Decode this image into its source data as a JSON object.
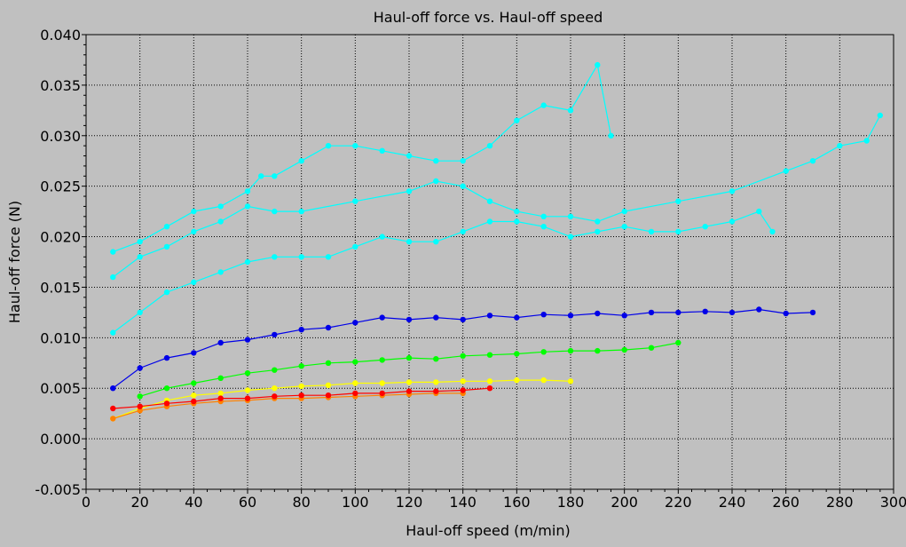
{
  "chart_data": {
    "type": "scatter",
    "title": "Haul-off force vs. Haul-off speed",
    "xlabel": "Haul-off speed (m/min)",
    "ylabel": "Haul-off force (N)",
    "xlim": [
      0,
      300
    ],
    "ylim": [
      -0.005,
      0.04
    ],
    "xticks": [
      0,
      20,
      40,
      60,
      80,
      100,
      120,
      140,
      160,
      180,
      200,
      220,
      240,
      260,
      280,
      300
    ],
    "yticks": [
      -0.005,
      0.0,
      0.005,
      0.01,
      0.015,
      0.02,
      0.025,
      0.03,
      0.035,
      0.04
    ],
    "xtick_labels": [
      "0",
      "20",
      "40",
      "60",
      "80",
      "100",
      "120",
      "140",
      "160",
      "180",
      "200",
      "220",
      "240",
      "260",
      "280",
      "300"
    ],
    "ytick_labels": [
      "-0.005",
      "0.000",
      "0.005",
      "0.010",
      "0.015",
      "0.020",
      "0.025",
      "0.030",
      "0.035",
      "0.040"
    ],
    "grid": true,
    "series": [
      {
        "color": "#00ffff",
        "points": [
          [
            10,
            0.0185
          ],
          [
            20,
            0.0195
          ],
          [
            30,
            0.021
          ],
          [
            40,
            0.0225
          ],
          [
            50,
            0.023
          ],
          [
            60,
            0.0245
          ],
          [
            65,
            0.026
          ],
          [
            70,
            0.026
          ],
          [
            80,
            0.0275
          ],
          [
            90,
            0.029
          ],
          [
            100,
            0.029
          ],
          [
            110,
            0.0285
          ],
          [
            120,
            0.028
          ],
          [
            130,
            0.0275
          ],
          [
            140,
            0.0275
          ],
          [
            150,
            0.029
          ],
          [
            160,
            0.0315
          ],
          [
            170,
            0.033
          ],
          [
            180,
            0.0325
          ],
          [
            190,
            0.037
          ],
          [
            195,
            0.03
          ]
        ]
      },
      {
        "color": "#00ffff",
        "points": [
          [
            10,
            0.016
          ],
          [
            20,
            0.018
          ],
          [
            30,
            0.019
          ],
          [
            40,
            0.0205
          ],
          [
            50,
            0.0215
          ],
          [
            60,
            0.023
          ],
          [
            70,
            0.0225
          ],
          [
            80,
            0.0225
          ],
          [
            100,
            0.0235
          ],
          [
            120,
            0.0245
          ],
          [
            130,
            0.0255
          ],
          [
            140,
            0.025
          ],
          [
            150,
            0.0235
          ],
          [
            160,
            0.0225
          ],
          [
            170,
            0.022
          ],
          [
            180,
            0.022
          ],
          [
            190,
            0.0215
          ],
          [
            200,
            0.0225
          ],
          [
            220,
            0.0235
          ],
          [
            240,
            0.0245
          ],
          [
            260,
            0.0265
          ],
          [
            270,
            0.0275
          ],
          [
            280,
            0.029
          ],
          [
            290,
            0.0295
          ],
          [
            295,
            0.032
          ]
        ]
      },
      {
        "color": "#00ffff",
        "points": [
          [
            10,
            0.0105
          ],
          [
            20,
            0.0125
          ],
          [
            30,
            0.0145
          ],
          [
            40,
            0.0155
          ],
          [
            50,
            0.0165
          ],
          [
            60,
            0.0175
          ],
          [
            70,
            0.018
          ],
          [
            80,
            0.018
          ],
          [
            90,
            0.018
          ],
          [
            100,
            0.019
          ],
          [
            110,
            0.02
          ],
          [
            120,
            0.0195
          ],
          [
            130,
            0.0195
          ],
          [
            140,
            0.0205
          ],
          [
            150,
            0.0215
          ],
          [
            160,
            0.0215
          ],
          [
            170,
            0.021
          ],
          [
            180,
            0.02
          ],
          [
            190,
            0.0205
          ],
          [
            200,
            0.021
          ],
          [
            210,
            0.0205
          ],
          [
            220,
            0.0205
          ],
          [
            230,
            0.021
          ],
          [
            240,
            0.0215
          ],
          [
            250,
            0.0225
          ],
          [
            255,
            0.0205
          ]
        ]
      },
      {
        "color": "#0000e8",
        "points": [
          [
            10,
            0.005
          ],
          [
            20,
            0.007
          ],
          [
            30,
            0.008
          ],
          [
            40,
            0.0085
          ],
          [
            50,
            0.0095
          ],
          [
            60,
            0.0098
          ],
          [
            70,
            0.0103
          ],
          [
            80,
            0.0108
          ],
          [
            90,
            0.011
          ],
          [
            100,
            0.0115
          ],
          [
            110,
            0.012
          ],
          [
            120,
            0.0118
          ],
          [
            130,
            0.012
          ],
          [
            140,
            0.0118
          ],
          [
            150,
            0.0122
          ],
          [
            160,
            0.012
          ],
          [
            170,
            0.0123
          ],
          [
            180,
            0.0122
          ],
          [
            190,
            0.0124
          ],
          [
            200,
            0.0122
          ],
          [
            210,
            0.0125
          ],
          [
            220,
            0.0125
          ],
          [
            230,
            0.0126
          ],
          [
            240,
            0.0125
          ],
          [
            250,
            0.0128
          ],
          [
            260,
            0.0124
          ],
          [
            270,
            0.0125
          ]
        ]
      },
      {
        "color": "#00ff00",
        "points": [
          [
            20,
            0.0042
          ],
          [
            30,
            0.005
          ],
          [
            40,
            0.0055
          ],
          [
            50,
            0.006
          ],
          [
            60,
            0.0065
          ],
          [
            70,
            0.0068
          ],
          [
            80,
            0.0072
          ],
          [
            90,
            0.0075
          ],
          [
            100,
            0.0076
          ],
          [
            110,
            0.0078
          ],
          [
            120,
            0.008
          ],
          [
            130,
            0.0079
          ],
          [
            140,
            0.0082
          ],
          [
            150,
            0.0083
          ],
          [
            160,
            0.0084
          ],
          [
            170,
            0.0086
          ],
          [
            180,
            0.0087
          ],
          [
            190,
            0.0087
          ],
          [
            200,
            0.0088
          ],
          [
            210,
            0.009
          ],
          [
            220,
            0.0095
          ]
        ]
      },
      {
        "color": "#ffff00",
        "points": [
          [
            10,
            0.002
          ],
          [
            20,
            0.003
          ],
          [
            30,
            0.0038
          ],
          [
            40,
            0.0043
          ],
          [
            50,
            0.0045
          ],
          [
            60,
            0.0048
          ],
          [
            70,
            0.005
          ],
          [
            80,
            0.0052
          ],
          [
            90,
            0.0053
          ],
          [
            100,
            0.0055
          ],
          [
            110,
            0.0055
          ],
          [
            120,
            0.0056
          ],
          [
            130,
            0.0056
          ],
          [
            140,
            0.0057
          ],
          [
            150,
            0.0057
          ],
          [
            160,
            0.0058
          ],
          [
            170,
            0.0058
          ],
          [
            180,
            0.0057
          ]
        ]
      },
      {
        "color": "#ff8000",
        "points": [
          [
            10,
            0.002
          ],
          [
            20,
            0.0028
          ],
          [
            30,
            0.0032
          ],
          [
            40,
            0.0035
          ],
          [
            50,
            0.0037
          ],
          [
            60,
            0.0038
          ],
          [
            70,
            0.004
          ],
          [
            80,
            0.004
          ],
          [
            90,
            0.0041
          ],
          [
            100,
            0.0042
          ],
          [
            110,
            0.0043
          ],
          [
            120,
            0.0044
          ],
          [
            130,
            0.0045
          ],
          [
            140,
            0.0045
          ]
        ]
      },
      {
        "color": "#ff0000",
        "points": [
          [
            10,
            0.003
          ],
          [
            20,
            0.0032
          ],
          [
            30,
            0.0035
          ],
          [
            40,
            0.0037
          ],
          [
            50,
            0.004
          ],
          [
            60,
            0.004
          ],
          [
            70,
            0.0042
          ],
          [
            80,
            0.0043
          ],
          [
            90,
            0.0043
          ],
          [
            100,
            0.0045
          ],
          [
            110,
            0.0045
          ],
          [
            120,
            0.0047
          ],
          [
            130,
            0.0047
          ],
          [
            140,
            0.0048
          ],
          [
            150,
            0.005
          ]
        ]
      }
    ]
  }
}
